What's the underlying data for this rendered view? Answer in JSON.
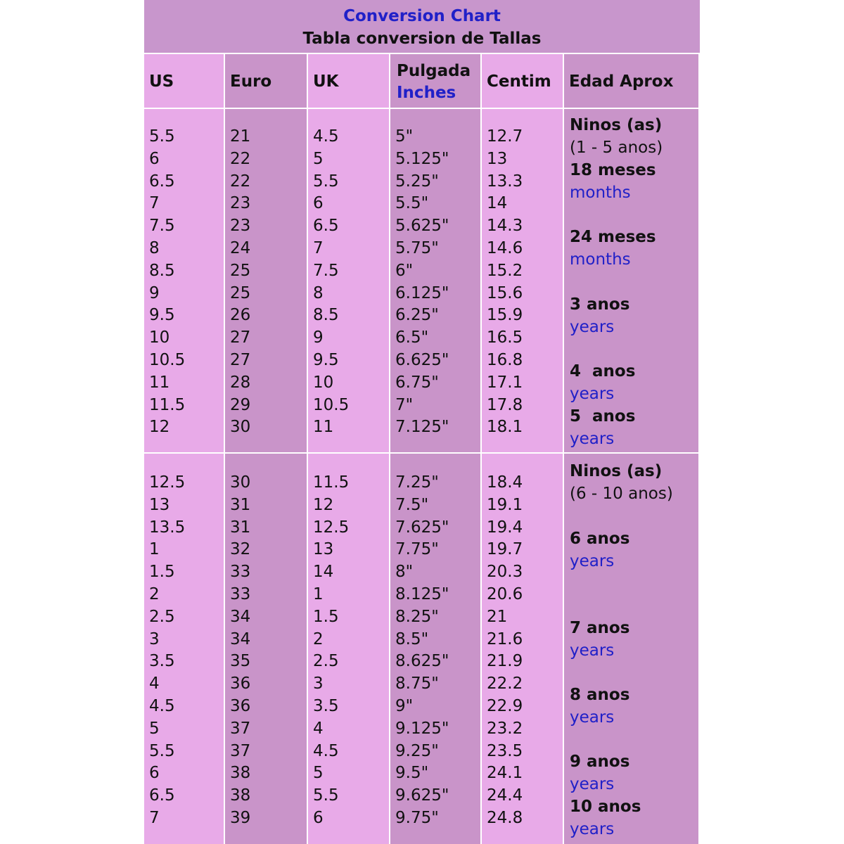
{
  "header": {
    "title": "Conversion Chart",
    "subtitle": "Tabla conversion de Tallas"
  },
  "table": {
    "columns": [
      {
        "label": "US"
      },
      {
        "label": "Euro"
      },
      {
        "label": "UK"
      },
      {
        "label": "Pulgada",
        "sub": "Inches"
      },
      {
        "label": "Centim"
      },
      {
        "label": "Edad Aprox"
      }
    ],
    "sections": [
      {
        "rows": [
          [
            "5.5",
            "21",
            "4.5",
            "5\"",
            "12.7"
          ],
          [
            "6",
            "22",
            "5",
            "5.125\"",
            "13"
          ],
          [
            "6.5",
            "22",
            "5.5",
            "5.25\"",
            "13.3"
          ],
          [
            "7",
            "23",
            "6",
            "5.5\"",
            "14"
          ],
          [
            "7.5",
            "23",
            "6.5",
            "5.625\"",
            "14.3"
          ],
          [
            "8",
            "24",
            "7",
            "5.75\"",
            "14.6"
          ],
          [
            "8.5",
            "25",
            "7.5",
            "6\"",
            "15.2"
          ],
          [
            "9",
            "25",
            "8",
            "6.125\"",
            "15.6"
          ],
          [
            "9.5",
            "26",
            "8.5",
            "6.25\"",
            "15.9"
          ],
          [
            "10",
            "27",
            "9",
            "6.5\"",
            "16.5"
          ],
          [
            "10.5",
            "27",
            "9.5",
            "6.625\"",
            "16.8"
          ],
          [
            "11",
            "28",
            "10",
            "6.75\"",
            "17.1"
          ],
          [
            "11.5",
            "29",
            "10.5",
            "7\"",
            "17.8"
          ],
          [
            "12",
            "30",
            "11",
            "7.125\"",
            "18.1"
          ]
        ],
        "ages": [
          {
            "title": "Ninos (as)",
            "note": "(1 - 5 anos)"
          },
          {
            "title": "18 meses",
            "note": "months"
          },
          {
            "title": "24 meses",
            "note": "months"
          },
          {
            "title": "3 anos",
            "note": "years"
          },
          {
            "title": "4  anos",
            "note": "years"
          },
          {
            "title": "5  anos",
            "note": "years"
          }
        ]
      },
      {
        "rows": [
          [
            "12.5",
            "30",
            "11.5",
            "7.25\"",
            "18.4"
          ],
          [
            "13",
            "31",
            "12",
            "7.5\"",
            "19.1"
          ],
          [
            "13.5",
            "31",
            "12.5",
            "7.625\"",
            "19.4"
          ],
          [
            "1",
            "32",
            "13",
            "7.75\"",
            "19.7"
          ],
          [
            "1.5",
            "33",
            "14",
            "8\"",
            "20.3"
          ],
          [
            "2",
            "33",
            "1",
            "8.125\"",
            "20.6"
          ],
          [
            "2.5",
            "34",
            "1.5",
            "8.25\"",
            "21"
          ],
          [
            "3",
            "34",
            "2",
            "8.5\"",
            "21.6"
          ],
          [
            "3.5",
            "35",
            "2.5",
            "8.625\"",
            "21.9"
          ],
          [
            "4",
            "36",
            "3",
            "8.75\"",
            "22.2"
          ],
          [
            "4.5",
            "36",
            "3.5",
            "9\"",
            "22.9"
          ],
          [
            "5",
            "37",
            "4",
            "9.125\"",
            "23.2"
          ],
          [
            "5.5",
            "37",
            "4.5",
            "9.25\"",
            "23.5"
          ],
          [
            "6",
            "38",
            "5",
            "9.5\"",
            "24.1"
          ],
          [
            "6.5",
            "38",
            "5.5",
            "9.625\"",
            "24.4"
          ],
          [
            "7",
            "39",
            "6",
            "9.75\"",
            "24.8"
          ]
        ],
        "ages": [
          {
            "title": "Ninos (as)",
            "note": "(6 - 10 anos)"
          },
          {
            "title": "6 anos",
            "note": "years"
          },
          {
            "title": "7 anos",
            "note": "years"
          },
          {
            "title": "8 anos",
            "note": "years"
          },
          {
            "title": "9 anos",
            "note": "years"
          },
          {
            "title": "10 anos",
            "note": "years"
          }
        ]
      }
    ]
  }
}
